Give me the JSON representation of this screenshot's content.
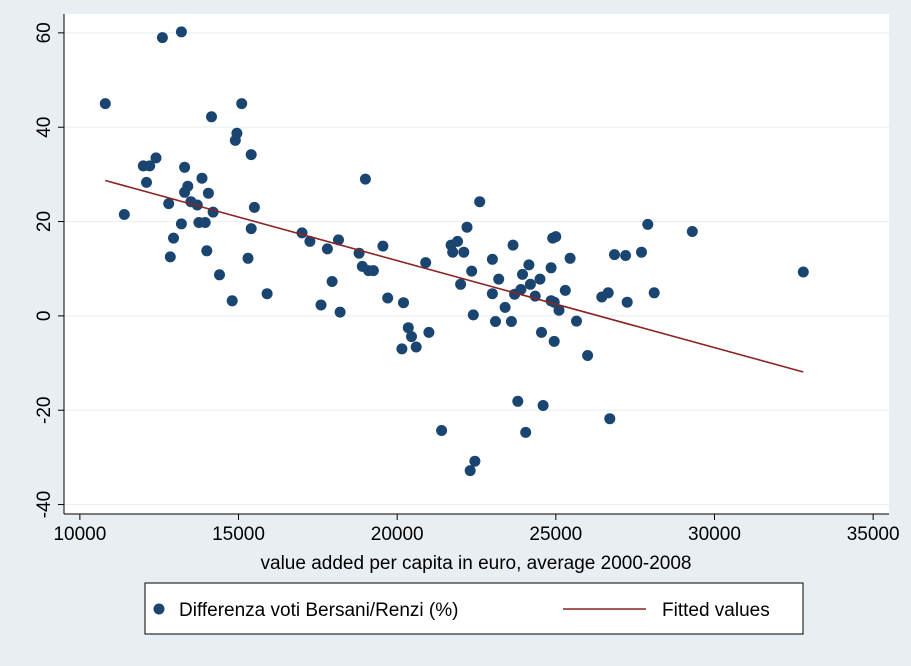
{
  "chart_data": {
    "type": "scatter",
    "title": "",
    "xlabel": "value added per capita in euro, average 2000-2008",
    "ylabel": "",
    "xlim": [
      9500,
      35500
    ],
    "ylim": [
      -42,
      64
    ],
    "x_ticks": [
      10000,
      15000,
      20000,
      25000,
      30000,
      35000
    ],
    "y_ticks": [
      60,
      40,
      20,
      0,
      -20,
      -40
    ],
    "grid": "horizontal",
    "legend_position": "bottom",
    "series": [
      {
        "name": "Differenza voti Bersani/Renzi (%)",
        "kind": "scatter",
        "color": "#1a4570",
        "points": [
          [
            10800,
            45
          ],
          [
            11400,
            21.5
          ],
          [
            12000,
            31.8
          ],
          [
            12200,
            31.8
          ],
          [
            12100,
            28.3
          ],
          [
            12400,
            33.5
          ],
          [
            12600,
            59
          ],
          [
            13200,
            60.2
          ],
          [
            12800,
            23.8
          ],
          [
            12850,
            12.5
          ],
          [
            12950,
            16.5
          ],
          [
            13200,
            19.5
          ],
          [
            13300,
            31.5
          ],
          [
            13300,
            26.2
          ],
          [
            13400,
            27.5
          ],
          [
            13500,
            24.2
          ],
          [
            13700,
            23.5
          ],
          [
            13750,
            19.8
          ],
          [
            13850,
            29.2
          ],
          [
            13950,
            19.8
          ],
          [
            14000,
            13.8
          ],
          [
            14050,
            26
          ],
          [
            14150,
            42.2
          ],
          [
            14200,
            22
          ],
          [
            14400,
            8.7
          ],
          [
            14800,
            3.2
          ],
          [
            14900,
            37.2
          ],
          [
            14950,
            38.7
          ],
          [
            15100,
            45
          ],
          [
            15300,
            12.2
          ],
          [
            15400,
            34.2
          ],
          [
            15400,
            18.5
          ],
          [
            15500,
            23
          ],
          [
            15900,
            4.7
          ],
          [
            17000,
            17.6
          ],
          [
            17250,
            15.8
          ],
          [
            17600,
            2.3
          ],
          [
            17800,
            14.2
          ],
          [
            17950,
            7.3
          ],
          [
            18150,
            16.1
          ],
          [
            18200,
            0.8
          ],
          [
            18800,
            13.3
          ],
          [
            18900,
            10.5
          ],
          [
            19000,
            29
          ],
          [
            19100,
            9.6
          ],
          [
            19250,
            9.6
          ],
          [
            19550,
            14.8
          ],
          [
            19700,
            3.8
          ],
          [
            20150,
            -7
          ],
          [
            20200,
            2.8
          ],
          [
            20350,
            -2.5
          ],
          [
            20450,
            -4.4
          ],
          [
            20600,
            -6.6
          ],
          [
            20900,
            11.3
          ],
          [
            21000,
            -3.5
          ],
          [
            21400,
            -24.3
          ],
          [
            21700,
            15
          ],
          [
            21750,
            13.5
          ],
          [
            21900,
            15.8
          ],
          [
            22000,
            6.7
          ],
          [
            22100,
            13.5
          ],
          [
            22200,
            18.8
          ],
          [
            22300,
            -32.8
          ],
          [
            22350,
            9.5
          ],
          [
            22400,
            0.2
          ],
          [
            22450,
            -30.8
          ],
          [
            22600,
            24.2
          ],
          [
            23000,
            12
          ],
          [
            23000,
            4.7
          ],
          [
            23100,
            -1.2
          ],
          [
            23200,
            7.8
          ],
          [
            23400,
            1.8
          ],
          [
            23600,
            -1.2
          ],
          [
            23650,
            15
          ],
          [
            23700,
            4.6
          ],
          [
            23800,
            -18.1
          ],
          [
            23900,
            5.6
          ],
          [
            23950,
            8.8
          ],
          [
            24050,
            -24.7
          ],
          [
            24150,
            10.8
          ],
          [
            24200,
            6.7
          ],
          [
            24350,
            4.2
          ],
          [
            24500,
            7.8
          ],
          [
            24550,
            -3.5
          ],
          [
            24600,
            -19
          ],
          [
            24850,
            3.2
          ],
          [
            24850,
            10.2
          ],
          [
            24900,
            16.5
          ],
          [
            24950,
            2.9
          ],
          [
            24950,
            -5.4
          ],
          [
            25000,
            16.8
          ],
          [
            25100,
            1.2
          ],
          [
            25300,
            5.4
          ],
          [
            25450,
            12.2
          ],
          [
            25650,
            -1.1
          ],
          [
            26000,
            -8.4
          ],
          [
            26450,
            4
          ],
          [
            26650,
            4.9
          ],
          [
            26700,
            -21.8
          ],
          [
            26850,
            13
          ],
          [
            27200,
            12.8
          ],
          [
            27250,
            2.9
          ],
          [
            27700,
            13.5
          ],
          [
            27900,
            19.4
          ],
          [
            28100,
            4.9
          ],
          [
            29300,
            17.9
          ],
          [
            32800,
            9.3
          ]
        ]
      },
      {
        "name": "Fitted values",
        "kind": "line",
        "color": "#8b2323",
        "x": [
          10800,
          32800
        ],
        "y": [
          28.7,
          -11.9
        ]
      }
    ]
  }
}
